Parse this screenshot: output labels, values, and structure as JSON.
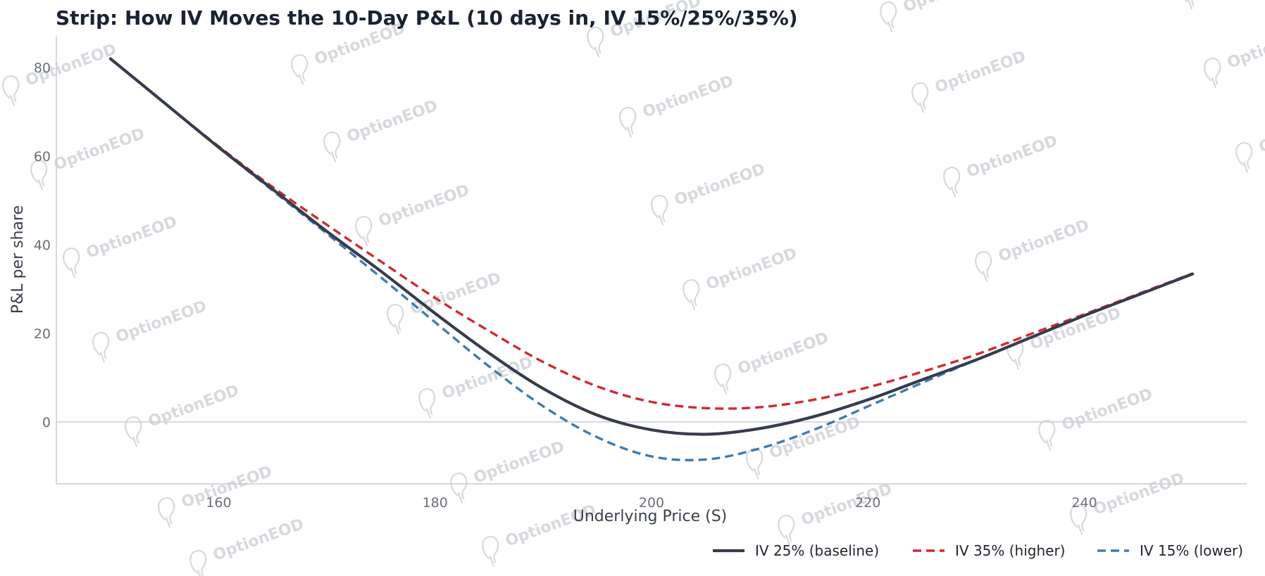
{
  "watermark_text": "OptionEOD",
  "chart_data": {
    "type": "line",
    "title": "Strip: How IV Moves the 10-Day P&L (10 days in, IV 15%/25%/35%)",
    "xlabel": "Underlying Price (S)",
    "ylabel": "P&L per share",
    "xlim": [
      145,
      255
    ],
    "ylim": [
      -14,
      87
    ],
    "xticks": [
      160,
      180,
      200,
      220,
      240
    ],
    "yticks": [
      0,
      20,
      40,
      60,
      80
    ],
    "grid": false,
    "zero_line": true,
    "legend_position": "bottom-right",
    "series": [
      {
        "name": "IV 25% (baseline)",
        "color": "#363c4d",
        "dash": "solid",
        "x": [
          150,
          155,
          160,
          165,
          170,
          175,
          180,
          185,
          190,
          195,
          200,
          205,
          210,
          215,
          220,
          225,
          230,
          235,
          240,
          245,
          250
        ],
        "y": [
          82,
          72,
          62,
          52.5,
          43,
          34,
          24.5,
          15.5,
          7.5,
          1.5,
          -1.8,
          -2.8,
          -1.5,
          1.2,
          5.0,
          9.5,
          14.0,
          19.0,
          24.0,
          28.7,
          33.4
        ]
      },
      {
        "name": "IV 35% (higher)",
        "color": "#d02a2f",
        "dash": "dashed",
        "x": [
          150,
          155,
          160,
          165,
          170,
          175,
          180,
          185,
          190,
          195,
          200,
          205,
          210,
          215,
          220,
          225,
          230,
          235,
          240,
          245,
          250
        ],
        "y": [
          82,
          72,
          62.2,
          53.0,
          44.5,
          36.2,
          28.0,
          20.5,
          13.5,
          8.0,
          4.5,
          3.1,
          3.3,
          5.0,
          7.8,
          11.3,
          15.2,
          19.8,
          24.3,
          28.9,
          33.5
        ]
      },
      {
        "name": "IV 15% (lower)",
        "color": "#3e7bb0",
        "dash": "dashed",
        "x": [
          150,
          155,
          160,
          165,
          170,
          175,
          180,
          185,
          190,
          195,
          200,
          205,
          210,
          215,
          220,
          225,
          230,
          235,
          240,
          245,
          250
        ],
        "y": [
          82,
          72,
          62,
          52.2,
          42.5,
          32.6,
          22.5,
          12.5,
          3.5,
          -3.5,
          -7.8,
          -8.5,
          -6.0,
          -1.8,
          3.5,
          8.8,
          14.0,
          19.0,
          24.0,
          28.7,
          33.4
        ]
      }
    ]
  }
}
